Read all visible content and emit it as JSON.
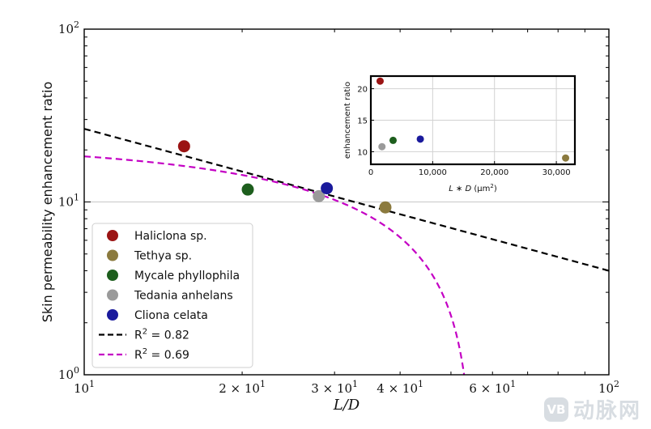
{
  "chart_data": [
    {
      "type": "scatter",
      "role": "main",
      "xscale": "log",
      "yscale": "log",
      "xlim": [
        10,
        100
      ],
      "ylim": [
        1,
        100
      ],
      "xlabel": "L/D",
      "ylabel": "Skin permeability enhancement ratio",
      "xticks": [
        {
          "value": 10,
          "base": "10",
          "exp": "1"
        },
        {
          "value": 20,
          "mant": "2",
          "base": "10",
          "exp": "1"
        },
        {
          "value": 30,
          "mant": "3",
          "base": "10",
          "exp": "1"
        },
        {
          "value": 40,
          "mant": "4",
          "base": "10",
          "exp": "1"
        },
        {
          "value": 60,
          "mant": "6",
          "base": "10",
          "exp": "1"
        },
        {
          "value": 100,
          "base": "10",
          "exp": "2"
        }
      ],
      "yticks": [
        {
          "value": 1,
          "base": "10",
          "exp": "0"
        },
        {
          "value": 10,
          "base": "10",
          "exp": "1"
        },
        {
          "value": 100,
          "base": "10",
          "exp": "2"
        }
      ],
      "gridlines_y": [
        10
      ],
      "series": [
        {
          "name": "Haliclona sp.",
          "color": "#9b1414",
          "x": 15.5,
          "y": 21.0
        },
        {
          "name": "Tethya sp.",
          "color": "#8b7a3e",
          "x": 37.5,
          "y": 9.3
        },
        {
          "name": "Mycale phyllophila",
          "color": "#1d5e1d",
          "x": 20.5,
          "y": 11.8
        },
        {
          "name": "Tedania anhelans",
          "color": "#9a9a9a",
          "x": 28.0,
          "y": 10.8
        },
        {
          "name": "Cliona celata",
          "color": "#1a1a9c",
          "x": 29.0,
          "y": 12.0
        }
      ],
      "fits": [
        {
          "name": "R² = 0.82",
          "label_base": "R",
          "label_exp": "2",
          "label_rest": " = 0.82",
          "color": "#000000",
          "kind": "powerlaw",
          "points": [
            [
              10,
              26.5
            ],
            [
              100,
              4.0
            ]
          ]
        },
        {
          "name": "R² = 0.69",
          "label_base": "R",
          "label_exp": "2",
          "label_rest": " = 0.69",
          "color": "#c400c4",
          "kind": "linear",
          "a": 22.4,
          "b": 0.404
        }
      ],
      "legend_position": "lower-left"
    },
    {
      "type": "scatter",
      "role": "inset",
      "xscale": "linear",
      "yscale": "linear",
      "xlim": [
        0,
        33000
      ],
      "ylim": [
        8,
        22
      ],
      "xlabel": "L * D (μm²)",
      "xlabel_parts": {
        "lead": "L ∗ D",
        "unit_open": " (μm",
        "unit_exp": "2",
        "unit_close": ")"
      },
      "ylabel": "enhancement ratio",
      "xticks": [
        {
          "value": 0,
          "label": "0"
        },
        {
          "value": 10000,
          "label": "10,000"
        },
        {
          "value": 20000,
          "label": "20,000"
        },
        {
          "value": 30000,
          "label": "30,000"
        }
      ],
      "yticks": [
        {
          "value": 10,
          "label": "10"
        },
        {
          "value": 15,
          "label": "15"
        },
        {
          "value": 20,
          "label": "20"
        }
      ],
      "grid": true,
      "points": [
        {
          "series": "Haliclona sp.",
          "x": 1500,
          "y": 21.2
        },
        {
          "series": "Tedania anhelans",
          "x": 1800,
          "y": 10.8
        },
        {
          "series": "Mycale phyllophila",
          "x": 3600,
          "y": 11.8
        },
        {
          "series": "Cliona celata",
          "x": 8000,
          "y": 12.0
        },
        {
          "series": "Tethya sp.",
          "x": 31500,
          "y": 9.0
        }
      ]
    }
  ],
  "watermark": {
    "badge": "VB",
    "text": "动脉网"
  }
}
